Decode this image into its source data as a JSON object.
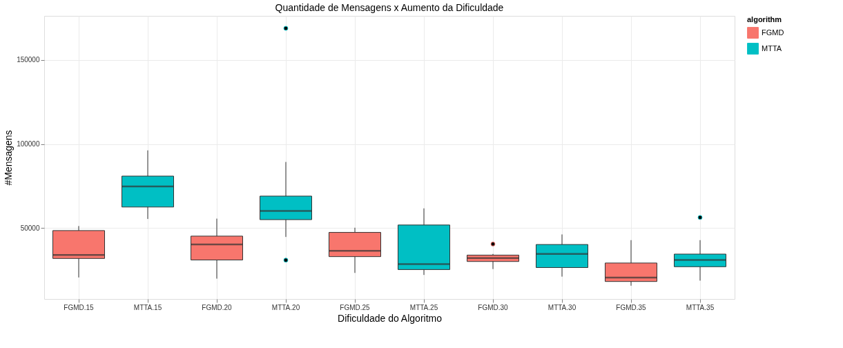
{
  "chart_data": {
    "type": "box",
    "title": "Quantidade de Mensagens x Aumento da Dificuldade",
    "xlabel": "Dificuldade do Algoritmo",
    "ylabel": "#Mensagens",
    "legend_title": "algorithm",
    "legend": "right",
    "grid": true,
    "categories": [
      "FGMD.15",
      "MTTA.15",
      "FGMD.20",
      "MTTA.20",
      "FGMD.25",
      "MTTA.25",
      "FGMD.30",
      "MTTA.30",
      "FGMD.35",
      "MTTA.35"
    ],
    "ylim": [
      7800,
      176200
    ],
    "yticks": [
      50000,
      100000,
      150000
    ],
    "series": [
      {
        "name": "FGMD",
        "color": "#f8766d",
        "boxes": [
          {
            "low": 20600,
            "q1": 31900,
            "median": 34000,
            "q3": 48500,
            "high": 51200
          },
          null,
          {
            "low": 19900,
            "q1": 31000,
            "median": 40200,
            "q3": 45200,
            "high": 55600
          },
          null,
          {
            "low": 23300,
            "q1": 33000,
            "median": 36400,
            "q3": 47400,
            "high": 50200
          },
          null,
          {
            "low": 25600,
            "q1": 30100,
            "median": 32100,
            "q3": 33900,
            "high": 34600,
            "outliers": [
              40500
            ]
          },
          null,
          {
            "low": 15700,
            "q1": 18200,
            "median": 20500,
            "q3": 29200,
            "high": 42800
          },
          null
        ]
      },
      {
        "name": "MTTA",
        "color": "#00bfc4",
        "boxes": [
          null,
          {
            "low": 55400,
            "q1": 62500,
            "median": 74700,
            "q3": 80900,
            "high": 96200
          },
          null,
          {
            "low": 44700,
            "q1": 55000,
            "median": 60200,
            "q3": 69000,
            "high": 89300,
            "outliers": [
              168800,
              30900
            ]
          },
          null,
          {
            "low": 22100,
            "q1": 25300,
            "median": 28500,
            "q3": 51800,
            "high": 61700
          },
          null,
          {
            "low": 21100,
            "q1": 26500,
            "median": 34600,
            "q3": 40200,
            "high": 46200
          },
          null,
          {
            "low": 18700,
            "q1": 27000,
            "median": 31000,
            "q3": 34500,
            "high": 42800,
            "outliers": [
              56300
            ]
          }
        ]
      }
    ]
  }
}
